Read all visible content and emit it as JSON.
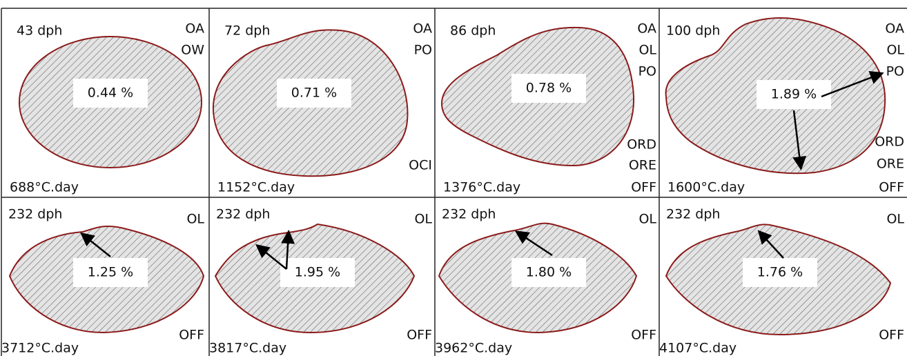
{
  "panels": [
    {
      "age": "43 dph",
      "percent": "0.44 %",
      "degree_days": "688°C.day",
      "top_labels": [
        "OA",
        "OW"
      ],
      "bottom_labels": []
    },
    {
      "age": "72 dph",
      "percent": "0.71 %",
      "degree_days": "1152°C.day",
      "top_labels": [
        "OA",
        "PO"
      ],
      "bottom_labels": [
        "OCI"
      ]
    },
    {
      "age": "86 dph",
      "percent": "0.78 %",
      "degree_days": "1376°C.day",
      "top_labels": [
        "OA",
        "OL",
        "PO"
      ],
      "bottom_labels": [
        "ORD",
        "ORE",
        "OFF"
      ]
    },
    {
      "age": "100 dph",
      "percent": "1.89 %",
      "degree_days": "1600°C.day",
      "top_labels": [
        "OA",
        "OL",
        "PO"
      ],
      "bottom_labels": [
        "ORD",
        "ORE",
        "OFF"
      ]
    },
    {
      "age": "232 dph",
      "percent": "1.25 %",
      "degree_days": "3712°C.day",
      "top_labels": [
        "OL"
      ],
      "bottom_labels": [
        "OFF"
      ]
    },
    {
      "age": "232 dph",
      "percent": "1.95 %",
      "degree_days": "3817°C.day",
      "top_labels": [
        "OL"
      ],
      "bottom_labels": [
        "OFF"
      ]
    },
    {
      "age": "232 dph",
      "percent": "1.80 %",
      "degree_days": "3962°C.day",
      "top_labels": [
        "OL"
      ],
      "bottom_labels": [
        "OFF"
      ]
    },
    {
      "age": "232 dph",
      "percent": "1.76 %",
      "degree_days": "4107°C.day",
      "top_labels": [
        "OL"
      ],
      "bottom_labels": [
        "OFF"
      ]
    }
  ]
}
